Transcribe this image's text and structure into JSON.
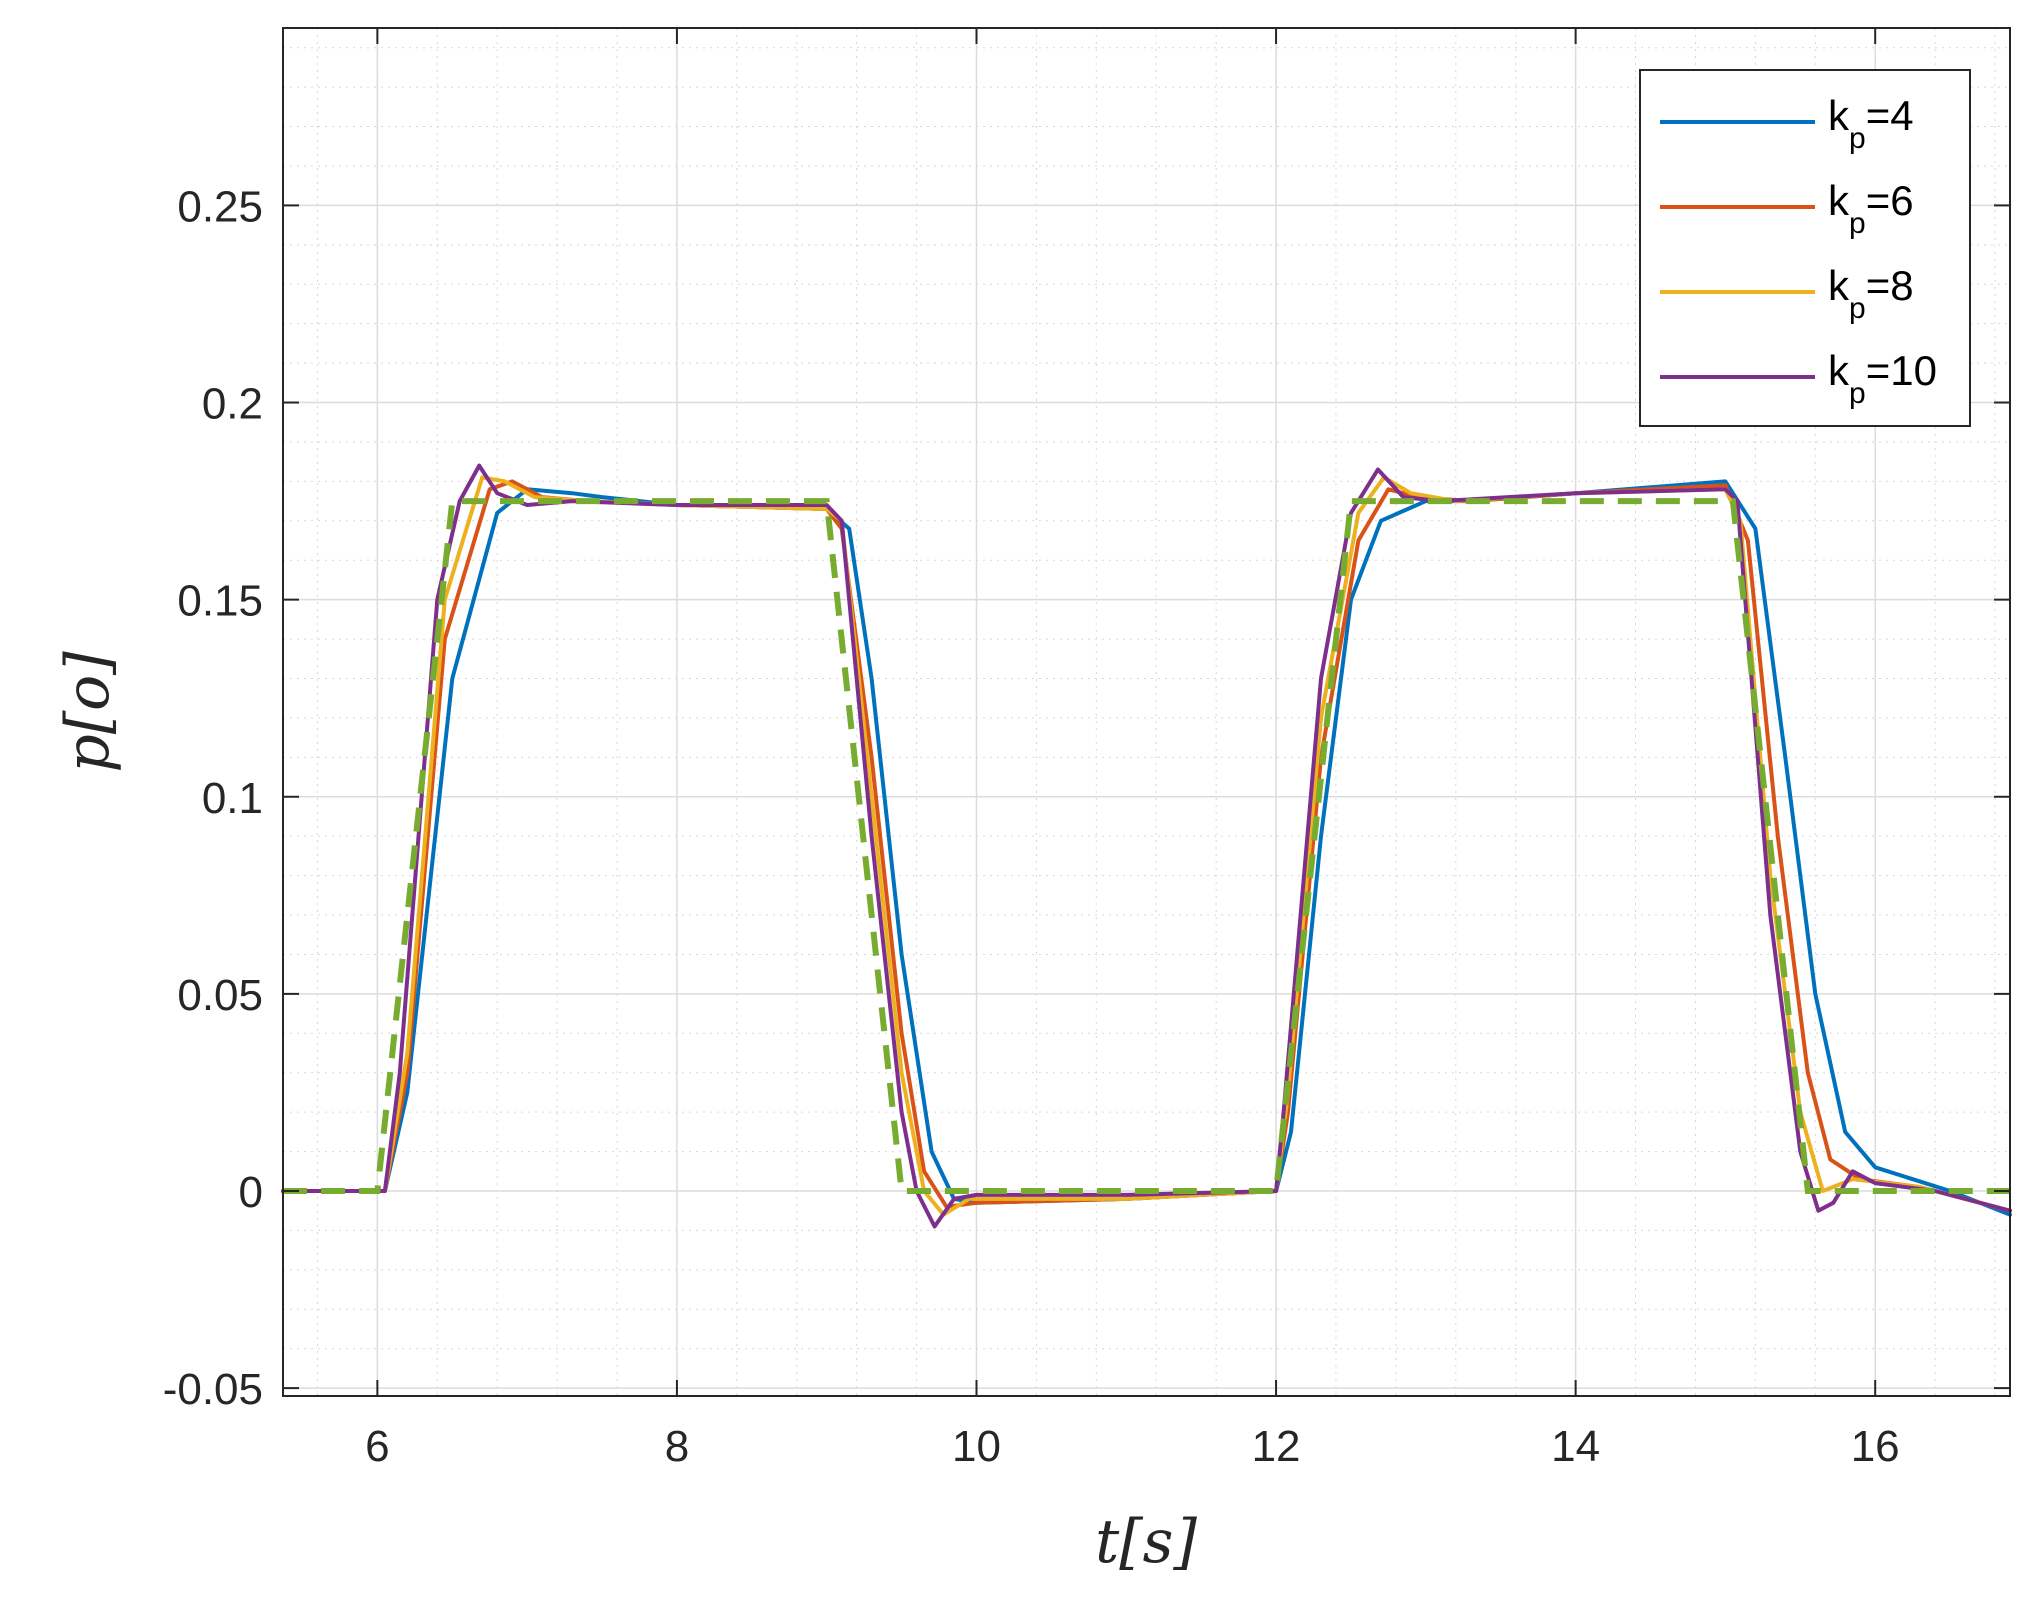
{
  "chart_data": {
    "type": "line",
    "xlabel": "t[s]",
    "ylabel": "p[o]",
    "xlim": [
      5.37,
      16.9
    ],
    "ylim": [
      -0.052,
      0.295
    ],
    "xticks": [
      6,
      8,
      10,
      12,
      14,
      16
    ],
    "xtick_labels": [
      "6",
      "8",
      "10",
      "12",
      "14",
      "16"
    ],
    "yticks": [
      -0.05,
      0,
      0.05,
      0.1,
      0.15,
      0.2,
      0.25
    ],
    "ytick_labels": [
      "-0.05",
      "0",
      "0.05",
      "0.1",
      "0.15",
      "0.2",
      "0.25"
    ],
    "grid": true,
    "minor_grid": true,
    "legend_position": "top-right",
    "reference": {
      "style": "dashed",
      "color": "#77AC30",
      "x": [
        5.37,
        6.0,
        6.5,
        9.0,
        9.5,
        12.0,
        12.5,
        15.05,
        15.55,
        16.9
      ],
      "y": [
        0,
        0,
        0.175,
        0.175,
        0,
        0,
        0.175,
        0.175,
        0,
        0
      ]
    },
    "series": [
      {
        "legend_text": "k",
        "legend_sub": "p",
        "legend_value": "=4",
        "color": "#0072BD",
        "x": [
          5.37,
          6.05,
          6.2,
          6.5,
          6.8,
          7.0,
          7.3,
          7.5,
          8.0,
          9.0,
          9.15,
          9.3,
          9.5,
          9.7,
          9.85,
          10.0,
          11.0,
          12.0,
          12.1,
          12.3,
          12.5,
          12.7,
          13.0,
          13.3,
          14.0,
          15.0,
          15.2,
          15.4,
          15.6,
          15.8,
          16.0,
          16.5,
          16.9
        ],
        "y": [
          0,
          0,
          0.025,
          0.13,
          0.172,
          0.178,
          0.177,
          0.176,
          0.174,
          0.173,
          0.168,
          0.13,
          0.06,
          0.01,
          -0.002,
          -0.003,
          -0.002,
          0,
          0.015,
          0.09,
          0.15,
          0.17,
          0.175,
          0.175,
          0.177,
          0.18,
          0.168,
          0.11,
          0.05,
          0.015,
          0.006,
          0.0,
          -0.006
        ]
      },
      {
        "legend_text": "k",
        "legend_sub": "p",
        "legend_value": "=6",
        "color": "#D95319",
        "x": [
          5.37,
          6.05,
          6.2,
          6.45,
          6.75,
          6.9,
          7.1,
          7.4,
          8.0,
          9.0,
          9.1,
          9.3,
          9.5,
          9.65,
          9.8,
          10.0,
          11.0,
          12.0,
          12.08,
          12.3,
          12.55,
          12.75,
          12.95,
          13.3,
          14.0,
          15.0,
          15.15,
          15.35,
          15.55,
          15.7,
          15.9,
          16.3,
          16.9
        ],
        "y": [
          0,
          0,
          0.03,
          0.14,
          0.178,
          0.18,
          0.176,
          0.175,
          0.174,
          0.173,
          0.168,
          0.11,
          0.04,
          0.005,
          -0.004,
          -0.003,
          -0.002,
          0,
          0.02,
          0.11,
          0.165,
          0.178,
          0.176,
          0.175,
          0.177,
          0.179,
          0.165,
          0.09,
          0.03,
          0.008,
          0.003,
          0.001,
          -0.005
        ]
      },
      {
        "legend_text": "k",
        "legend_sub": "p",
        "legend_value": "=8",
        "color": "#EDB120",
        "x": [
          5.37,
          6.05,
          6.2,
          6.45,
          6.7,
          6.85,
          7.05,
          7.4,
          8.0,
          9.0,
          9.1,
          9.3,
          9.5,
          9.65,
          9.78,
          9.95,
          11.0,
          12.0,
          12.08,
          12.3,
          12.55,
          12.72,
          12.9,
          13.2,
          14.0,
          15.0,
          15.1,
          15.3,
          15.5,
          15.65,
          15.85,
          16.3,
          16.9
        ],
        "y": [
          0,
          0,
          0.035,
          0.15,
          0.181,
          0.18,
          0.176,
          0.175,
          0.174,
          0.173,
          0.17,
          0.1,
          0.03,
          0.0,
          -0.006,
          -0.002,
          -0.002,
          0,
          0.025,
          0.12,
          0.172,
          0.181,
          0.177,
          0.175,
          0.177,
          0.178,
          0.17,
          0.08,
          0.02,
          0.0,
          0.003,
          0.001,
          -0.005
        ]
      },
      {
        "legend_text": "k",
        "legend_sub": "p",
        "legend_value": "=10",
        "color": "#7E2F8E",
        "x": [
          5.37,
          6.05,
          6.15,
          6.4,
          6.55,
          6.68,
          6.8,
          7.0,
          7.3,
          8.0,
          9.0,
          9.1,
          9.3,
          9.5,
          9.6,
          9.72,
          9.85,
          10.0,
          11.0,
          12.0,
          12.05,
          12.3,
          12.5,
          12.68,
          12.85,
          13.1,
          14.0,
          15.0,
          15.08,
          15.3,
          15.5,
          15.62,
          15.72,
          15.85,
          16.0,
          16.4,
          16.9
        ],
        "y": [
          0,
          0,
          0.03,
          0.15,
          0.175,
          0.184,
          0.177,
          0.174,
          0.175,
          0.174,
          0.174,
          0.17,
          0.09,
          0.02,
          0.0,
          -0.009,
          -0.002,
          -0.001,
          -0.001,
          0,
          0.02,
          0.13,
          0.172,
          0.183,
          0.176,
          0.175,
          0.177,
          0.178,
          0.175,
          0.07,
          0.01,
          -0.005,
          -0.003,
          0.005,
          0.002,
          0.0,
          -0.005
        ]
      }
    ]
  }
}
